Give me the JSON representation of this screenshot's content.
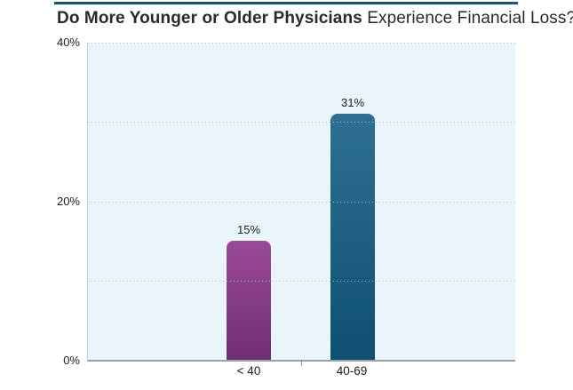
{
  "title": {
    "bold": "Do More Younger or Older Physicians",
    "regular": "Experience Financial Loss?"
  },
  "colors": {
    "title_rule": "#15566f",
    "plot_bg": "#eaf4fb",
    "plot_border": "#c2d6e0",
    "grid_dot": "#aac7d8",
    "axis_line": "#9da2a6",
    "bar_under40_top": "#9a4a98",
    "bar_under40_bottom": "#6f2e71",
    "bar_40_69_top": "#2f7092",
    "bar_40_69_bottom": "#0e4f72",
    "text": "#232323"
  },
  "chart_data": {
    "type": "bar",
    "title": "Do More Younger or Older Physicians Experience Financial Loss?",
    "categories": [
      "< 40",
      "40-69"
    ],
    "values": [
      15,
      31
    ],
    "value_labels": [
      "15%",
      "31%"
    ],
    "xlabel": "",
    "ylabel": "",
    "ylim": [
      0,
      40
    ],
    "ytick_labels": [
      "0%",
      "20%",
      "40%"
    ],
    "ytick_values": [
      0,
      20,
      40
    ],
    "gridline_percents": [
      10,
      20,
      30,
      40
    ],
    "grid_style": "dotted horizontal",
    "legend": "none"
  }
}
